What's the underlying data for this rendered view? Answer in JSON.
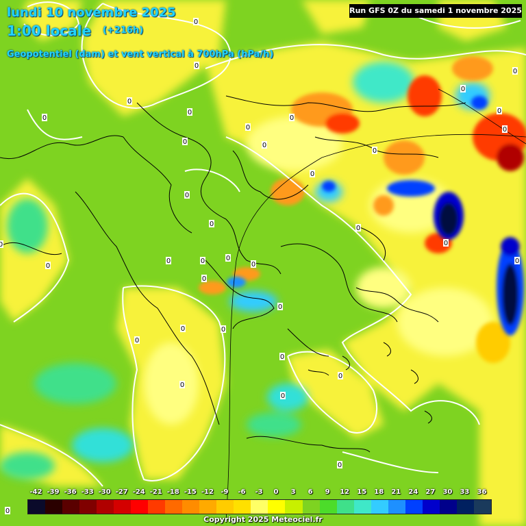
{
  "header": {
    "date": "lundi 10 novembre 2025",
    "local_time": "1:00 locale",
    "lead_time": "(+216h)",
    "field": "Geopotentiel (dam) et vent vertical à 700hPa (hPa/h)"
  },
  "run_info": "Run GFS 0Z du samedi 1 novembre 2025",
  "legend": {
    "labels": [
      "-42",
      "-39",
      "-36",
      "-33",
      "-30",
      "-27",
      "-24",
      "-21",
      "-18",
      "-15",
      "-12",
      "-9",
      "-6",
      "-3",
      "0",
      "3",
      "6",
      "9",
      "12",
      "15",
      "18",
      "21",
      "24",
      "27",
      "30",
      "33",
      "36"
    ],
    "colors": [
      "#0a0a2a",
      "#2a0000",
      "#5a0000",
      "#800000",
      "#b00000",
      "#d40000",
      "#ff0000",
      "#ff3a00",
      "#ff6a00",
      "#ff8c00",
      "#ffaa00",
      "#ffcc00",
      "#ffe000",
      "#ffff66",
      "#ffff00",
      "#c8f000",
      "#7ed321",
      "#4cdc2a",
      "#3fe08a",
      "#3fe8c8",
      "#33ccff",
      "#1e90ff",
      "#0040ff",
      "#0000cc",
      "#00008b",
      "#002060",
      "#1a3a5c"
    ]
  },
  "contour_label": "0",
  "copyright": "Copyright 2025 Meteociel.fr",
  "map_palette": {
    "base": "#7ed321",
    "yellow": "#f7f23a",
    "pale_yellow": "#ffff80",
    "orange": "#ff9a1a",
    "red": "#ff3a00",
    "dark_red": "#b00000",
    "cyan": "#33e0d8",
    "light_blue": "#33ccff",
    "blue": "#0040ff",
    "navy": "#001040"
  }
}
